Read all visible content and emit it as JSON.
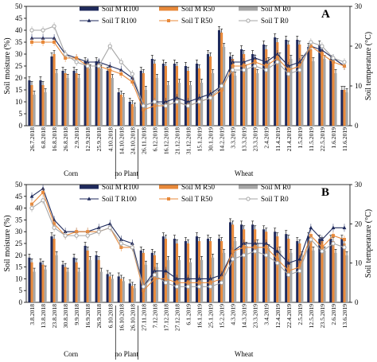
{
  "chart_data": [
    {
      "type": "bar",
      "panel_label": "A",
      "ylabel": "Soil moisture (%)",
      "y2label": "Soil temperature (°C)",
      "ylim": [
        0,
        50
      ],
      "y2lim": [
        0,
        30
      ],
      "yticks": [
        0,
        5,
        10,
        15,
        20,
        25,
        30,
        35,
        40,
        45,
        50
      ],
      "y2ticks": [
        0,
        10,
        20,
        30
      ],
      "categories": [
        "26.7.2018",
        "6.8.2018",
        "16.8.2018",
        "26.8.2018",
        "2.9.2018",
        "12.9.2018",
        "25.9.2018",
        "4.10.2018",
        "14.10.2018",
        "24.10.2018",
        "26.11.2018",
        "6.12.2018",
        "16.12.2018",
        "21.12.2018",
        "31.12.2018",
        "15.1.2019",
        "30.1.2019",
        "14.2.2019",
        "3.3.2019",
        "13.3.2019",
        "23.3.2019",
        "2.4.2019",
        "11.4.2019",
        "21.4.2019",
        "1.5.2019",
        "11.5.2019",
        "22.5.2019",
        "1.6.2019",
        "11.6.2019"
      ],
      "bar_series": [
        {
          "name": "Soil M R100",
          "color": "#1f2a5c",
          "values": [
            19,
            19,
            29,
            23,
            23,
            27,
            27,
            23,
            14,
            10,
            23,
            28,
            26,
            26,
            25,
            26,
            30,
            40,
            29,
            32,
            30,
            34,
            37,
            36,
            36,
            33,
            34,
            28,
            15
          ]
        },
        {
          "name": "Soil M R50",
          "color": "#e8893a",
          "values": [
            17,
            17,
            30,
            22,
            22,
            26,
            26,
            23,
            13,
            9,
            22,
            26,
            25,
            25,
            23,
            24,
            29,
            39,
            28,
            30,
            28,
            32,
            35,
            34,
            34,
            32,
            32,
            26,
            15
          ]
        },
        {
          "name": "Soil M R0",
          "color": "#a6a6a6",
          "values": [
            13,
            14,
            22,
            20,
            20,
            24,
            24,
            20,
            12,
            8,
            15,
            20,
            17,
            18,
            17,
            18,
            22,
            33,
            21,
            24,
            22,
            27,
            29,
            28,
            28,
            27,
            28,
            22,
            14
          ]
        }
      ],
      "line_series": [
        {
          "name": "Soil T R100",
          "color": "#1f2a5c",
          "marker": "triangle",
          "values": [
            22,
            22,
            22,
            18,
            17,
            16,
            16,
            15,
            14,
            12,
            5,
            6,
            6,
            7,
            6,
            7,
            8,
            10,
            16,
            16,
            17,
            16,
            18,
            15,
            16,
            20,
            19,
            17,
            15
          ]
        },
        {
          "name": "Soil T R50",
          "color": "#e8893a",
          "marker": "square",
          "values": [
            21,
            21,
            21,
            17,
            17,
            15,
            15,
            14,
            13,
            11,
            4,
            5,
            5,
            6,
            5,
            6,
            7,
            9,
            15,
            15,
            16,
            15,
            17,
            14,
            15,
            20,
            18,
            16,
            15
          ]
        },
        {
          "name": "Soil T R0",
          "color": "#a6a6a6",
          "marker": "circle",
          "values": [
            24,
            24,
            25,
            18,
            16,
            15,
            15,
            20,
            16,
            13,
            5,
            6,
            5,
            6,
            5,
            6,
            7,
            10,
            14,
            14,
            15,
            14,
            16,
            13,
            14,
            21,
            20,
            17,
            16
          ]
        }
      ],
      "groups": [
        {
          "label": "Corn",
          "start": 0,
          "end": 7
        },
        {
          "label": "no Plant",
          "start": 8,
          "end": 9
        },
        {
          "label": "Wheat",
          "start": 10,
          "end": 28
        }
      ]
    },
    {
      "type": "bar",
      "panel_label": "B",
      "ylabel": "Soil moisture (%)",
      "y2label": "Soil temperature (°C)",
      "ylim": [
        0,
        50
      ],
      "y2lim": [
        0,
        30
      ],
      "yticks": [
        0,
        5,
        10,
        15,
        20,
        25,
        30,
        35,
        40,
        45,
        50
      ],
      "y2ticks": [
        0,
        10,
        20,
        30
      ],
      "categories": [
        "3.8.2018",
        "13.8.2018",
        "23.8.2018",
        "30.8.2018",
        "9.9.2018",
        "16.9.2018",
        "26.9.2018",
        "6.10.2018",
        "16.10.2018",
        "26.10.2018",
        "27.11.2018",
        "7.12.2018",
        "17.12.2018",
        "27.12.2018",
        "6.1.2019",
        "16.1.2019",
        "25.1.2019",
        "15.2.2019",
        "4.3.2019",
        "14.3.2019",
        "23.3.2019",
        "3.4.2019",
        "12.4.2019",
        "22.4.2019",
        "2.5.2019",
        "12.5.2019",
        "23.5.2019",
        "2.6.2019",
        "13.6.2019"
      ],
      "bar_series": [
        {
          "name": "Soil M R100",
          "color": "#1f2a5c",
          "values": [
            19,
            17,
            28,
            16,
            19,
            24,
            20,
            12,
            11,
            8,
            22,
            21,
            28,
            27,
            26,
            28,
            27,
            27,
            34,
            33,
            33,
            31,
            30,
            29,
            26,
            28,
            27,
            27,
            27
          ]
        },
        {
          "name": "Soil M R50",
          "color": "#e8893a",
          "values": [
            17,
            16,
            27,
            15,
            17,
            22,
            18,
            11,
            10,
            7,
            21,
            20,
            27,
            25,
            25,
            26,
            26,
            26,
            33,
            31,
            31,
            30,
            28,
            27,
            25,
            27,
            26,
            26,
            25
          ]
        },
        {
          "name": "Soil M R0",
          "color": "#a6a6a6",
          "values": [
            13,
            14,
            20,
            13,
            13,
            18,
            13,
            10,
            9,
            6,
            16,
            15,
            18,
            18,
            17,
            18,
            19,
            21,
            26,
            24,
            25,
            23,
            22,
            21,
            20,
            22,
            22,
            21,
            20
          ]
        }
      ],
      "line_series": [
        {
          "name": "Soil T R100",
          "color": "#1f2a5c",
          "marker": "triangle",
          "values": [
            27,
            29,
            21,
            18,
            18,
            18,
            19,
            20,
            16,
            15,
            4,
            8,
            8,
            6,
            6,
            6,
            6,
            7,
            13,
            15,
            15,
            15,
            13,
            10,
            11,
            19,
            16,
            19,
            19
          ]
        },
        {
          "name": "Soil T R50",
          "color": "#e8893a",
          "marker": "square",
          "values": [
            25,
            28,
            20,
            17,
            18,
            18,
            18,
            19,
            14,
            14,
            3,
            6,
            6,
            5,
            5,
            5,
            5,
            6,
            13,
            14,
            14,
            14,
            11,
            8,
            9,
            17,
            14,
            17,
            16
          ]
        },
        {
          "name": "Soil T R0",
          "color": "#a6a6a6",
          "marker": "circle",
          "values": [
            24,
            26,
            19,
            17,
            17,
            17,
            18,
            19,
            15,
            14,
            4,
            7,
            5,
            4,
            4,
            4,
            4,
            5,
            11,
            12,
            13,
            12,
            10,
            7,
            8,
            16,
            13,
            15,
            14
          ]
        }
      ],
      "groups": [
        {
          "label": "Corn",
          "start": 0,
          "end": 7
        },
        {
          "label": "no Plant",
          "start": 8,
          "end": 9
        },
        {
          "label": "Wheat",
          "start": 10,
          "end": 28
        }
      ]
    }
  ]
}
